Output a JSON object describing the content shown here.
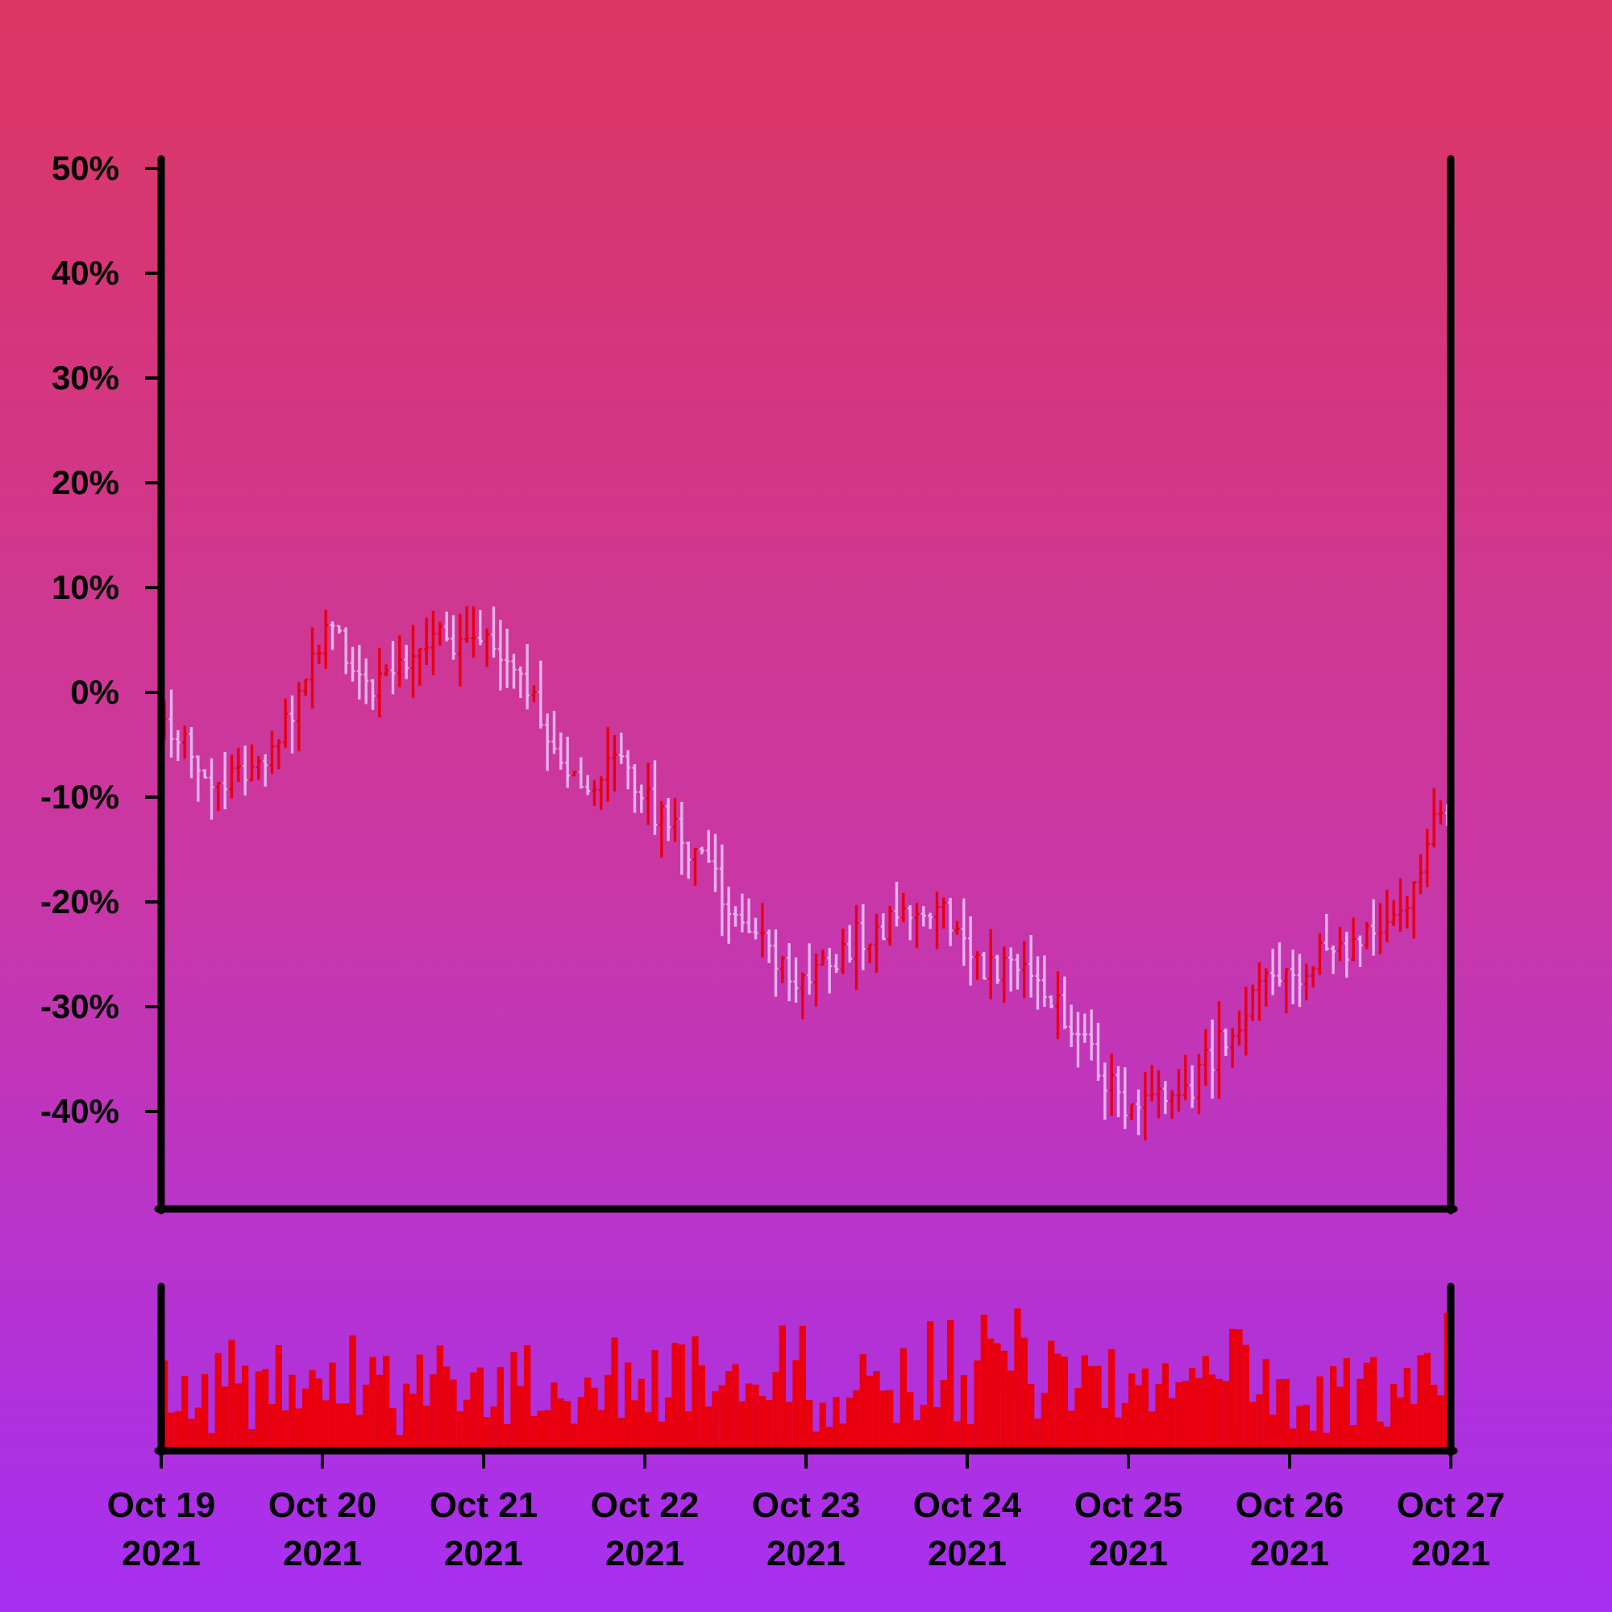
{
  "chart_data": {
    "type": "ohlc",
    "y_unit": "%",
    "ylim": [
      -50,
      50
    ],
    "yticks": [
      50,
      40,
      30,
      20,
      10,
      0,
      -10,
      -20,
      -30,
      -40
    ],
    "ytick_labels": [
      "50%",
      "40%",
      "30%",
      "20%",
      "10%",
      "0%",
      "-10%",
      "-20%",
      "-30%",
      "-40%"
    ],
    "x_start": "2021-10-19",
    "x_end": "2021-10-27",
    "xticks": [
      {
        "line1": "Oct 19",
        "line2": "2021"
      },
      {
        "line1": "Oct 20",
        "line2": "2021"
      },
      {
        "line1": "Oct 21",
        "line2": "2021"
      },
      {
        "line1": "Oct 22",
        "line2": "2021"
      },
      {
        "line1": "Oct 23",
        "line2": "2021"
      },
      {
        "line1": "Oct 24",
        "line2": "2021"
      },
      {
        "line1": "Oct 25",
        "line2": "2021"
      },
      {
        "line1": "Oct 26",
        "line2": "2021"
      },
      {
        "line1": "Oct 27",
        "line2": "2021"
      }
    ],
    "bar_interval_hours": 1,
    "price_trend_anchors": [
      {
        "t": "2021-10-19 00:00",
        "value": -3
      },
      {
        "t": "2021-10-19 10:00",
        "value": -9
      },
      {
        "t": "2021-10-19 18:00",
        "value": -4
      },
      {
        "t": "2021-10-20 01:00",
        "value": 6
      },
      {
        "t": "2021-10-20 07:00",
        "value": 1
      },
      {
        "t": "2021-10-20 17:00",
        "value": 5
      },
      {
        "t": "2021-10-21 02:00",
        "value": 5
      },
      {
        "t": "2021-10-21 14:00",
        "value": -9
      },
      {
        "t": "2021-10-21 20:00",
        "value": -7
      },
      {
        "t": "2021-10-22 05:00",
        "value": -14
      },
      {
        "t": "2021-10-22 17:00",
        "value": -23
      },
      {
        "t": "2021-10-23 00:00",
        "value": -28
      },
      {
        "t": "2021-10-23 08:00",
        "value": -23
      },
      {
        "t": "2021-10-23 20:00",
        "value": -21
      },
      {
        "t": "2021-10-24 02:00",
        "value": -27
      },
      {
        "t": "2021-10-24 09:00",
        "value": -26
      },
      {
        "t": "2021-10-24 19:00",
        "value": -35
      },
      {
        "t": "2021-10-25 00:00",
        "value": -40
      },
      {
        "t": "2021-10-25 10:00",
        "value": -37
      },
      {
        "t": "2021-10-25 20:00",
        "value": -28
      },
      {
        "t": "2021-10-26 09:00",
        "value": -24
      },
      {
        "t": "2021-10-26 16:00",
        "value": -22
      },
      {
        "t": "2021-10-26 21:00",
        "value": -13
      },
      {
        "t": "2021-10-27 00:00",
        "value": -13
      }
    ],
    "colors": {
      "up": "#e8000f",
      "down": "#e6b3ee",
      "volume": "#e8000f",
      "axis": "#000000"
    },
    "volume_panel": true,
    "grid": false,
    "legend": "none"
  }
}
